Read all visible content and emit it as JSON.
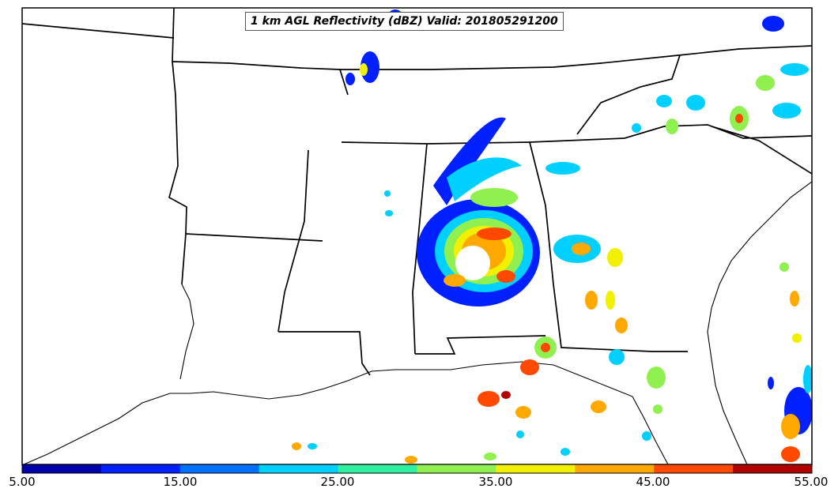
{
  "title": "1 km AGL Reflectivity (dBZ) Valid: 201805291200",
  "colorbar": {
    "ticks": [
      "5.00",
      "15.00",
      "25.00",
      "35.00",
      "45.00",
      "55.00"
    ],
    "colors": [
      "#0000a8",
      "#0020ff",
      "#0070ff",
      "#00d0ff",
      "#30f0a0",
      "#90f050",
      "#f0f000",
      "#ffa800",
      "#ff4800",
      "#b00000"
    ]
  },
  "colors": {
    "low": "#0020ff",
    "light": "#00d0ff",
    "moderate": "#90f050",
    "heavy": "#ffa800",
    "intense": "#ff4800",
    "extreme": "#b00000"
  }
}
